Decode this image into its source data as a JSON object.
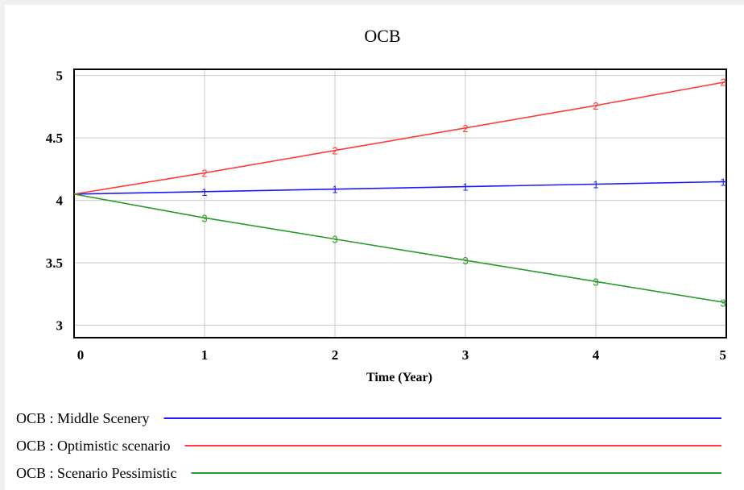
{
  "chart_data": {
    "type": "line",
    "title": "OCB",
    "xlabel": "Time (Year)",
    "ylabel": "",
    "x": [
      0,
      1,
      2,
      3,
      4,
      5
    ],
    "xlim": [
      0,
      5
    ],
    "ylim": [
      2.9,
      5.05
    ],
    "yticks": [
      "5",
      "4.5",
      "4",
      "3.5",
      "3"
    ],
    "ytick_values": [
      5,
      4.5,
      4,
      3.5,
      3
    ],
    "xticks": [
      "0",
      "1",
      "2",
      "3",
      "4",
      "5"
    ],
    "grid": true,
    "legend_position": "bottom",
    "series": [
      {
        "name": "OCB : Middle Scenery",
        "marker": "1",
        "color": "#1a1aff",
        "values": [
          4.05,
          4.07,
          4.09,
          4.11,
          4.13,
          4.15
        ]
      },
      {
        "name": "OCB : Optimistic scenario",
        "marker": "2",
        "color": "#ff3b3b",
        "values": [
          4.05,
          4.22,
          4.4,
          4.58,
          4.76,
          4.95
        ]
      },
      {
        "name": "OCB : Scenario Pessimistic",
        "marker": "3",
        "color": "#2a9a2a",
        "values": [
          4.05,
          3.86,
          3.69,
          3.52,
          3.35,
          3.18
        ]
      }
    ]
  }
}
